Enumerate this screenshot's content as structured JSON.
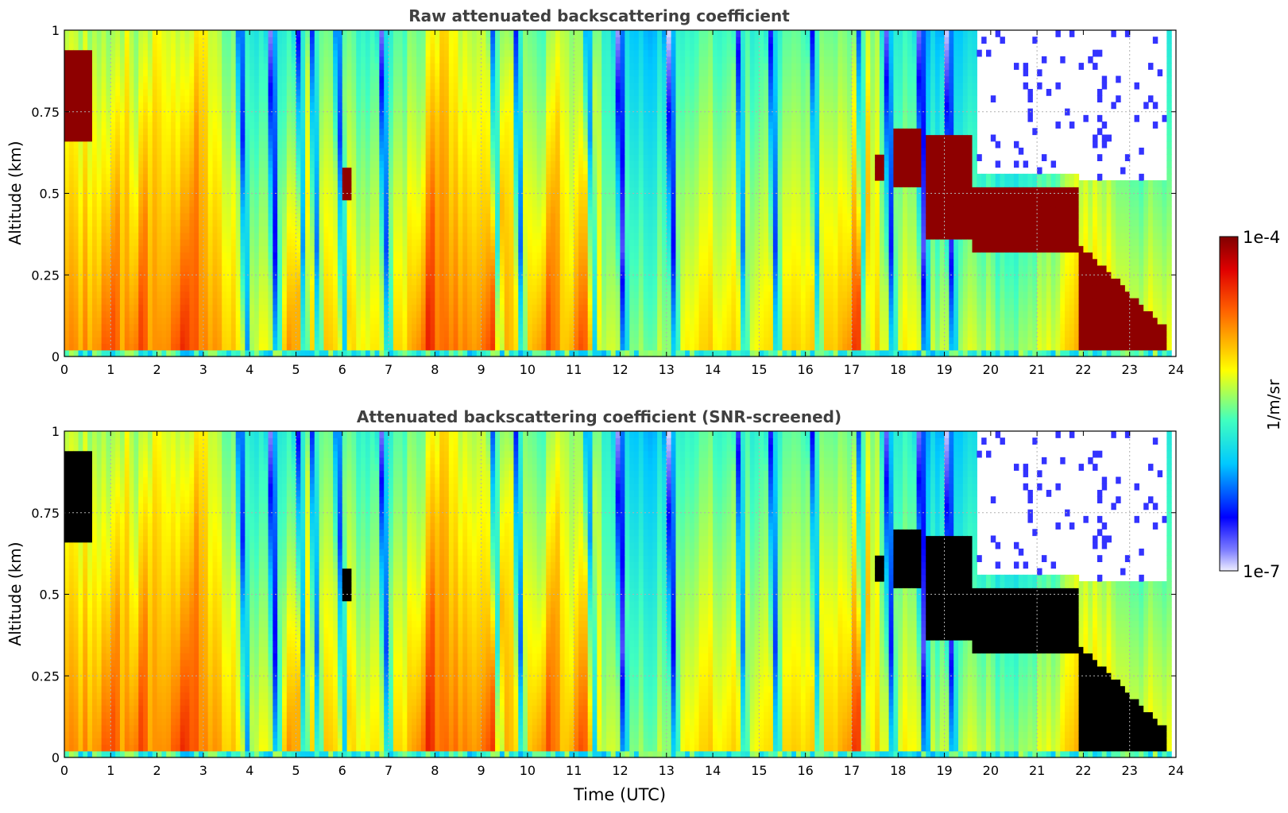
{
  "chart_data": [
    {
      "type": "heatmap",
      "title": "Raw attenuated backscattering coefficient",
      "xlabel": "",
      "ylabel": "Altitude (km)",
      "xlim": [
        0,
        24
      ],
      "ylim": [
        0,
        1
      ],
      "x_ticks": [
        "0",
        "1",
        "2",
        "3",
        "4",
        "5",
        "6",
        "7",
        "8",
        "9",
        "10",
        "11",
        "12",
        "13",
        "14",
        "15",
        "16",
        "17",
        "18",
        "19",
        "20",
        "21",
        "22",
        "23",
        "24"
      ],
      "y_ticks": [
        "0",
        "0.25",
        "0.5",
        "0.75",
        "1"
      ],
      "grid": true,
      "cloud_layers": [
        {
          "time_start": 17.5,
          "time_end": 17.7,
          "alt_low": 0.54,
          "alt_high": 0.62
        },
        {
          "time_start": 17.9,
          "time_end": 18.5,
          "alt_low": 0.52,
          "alt_high": 0.7
        },
        {
          "time_start": 18.6,
          "time_end": 19.6,
          "alt_low": 0.36,
          "alt_high": 0.68
        },
        {
          "time_start": 19.6,
          "time_end": 21.9,
          "alt_low": 0.32,
          "alt_high": 0.52
        },
        {
          "time_start": 21.9,
          "time_end": 23.8,
          "alt_low": 0.0,
          "alt_high": 0.35
        }
      ],
      "clear_sky_region": {
        "time_start": 19.7,
        "time_end": 23.8,
        "alt_low": 0.55,
        "alt_high": 1.0
      }
    },
    {
      "type": "heatmap",
      "title": "Attenuated backscattering coefficient (SNR-screened)",
      "xlabel": "Time (UTC)",
      "ylabel": "Altitude (km)",
      "xlim": [
        0,
        24
      ],
      "ylim": [
        0,
        1
      ],
      "x_ticks": [
        "0",
        "1",
        "2",
        "3",
        "4",
        "5",
        "6",
        "7",
        "8",
        "9",
        "10",
        "11",
        "12",
        "13",
        "14",
        "15",
        "16",
        "17",
        "18",
        "19",
        "20",
        "21",
        "22",
        "23",
        "24"
      ],
      "y_ticks": [
        "0",
        "0.25",
        "0.5",
        "0.75",
        "1"
      ],
      "grid": true,
      "screened_color": "#000000"
    }
  ],
  "colorbar": {
    "max_label": "1e-4",
    "min_label": "1e-7",
    "unit": "1/m/sr",
    "colormap": "jet",
    "colors": [
      "#eeeeff",
      "#0000ff",
      "#00ffff",
      "#ffff00",
      "#ff0000",
      "#800000"
    ]
  }
}
